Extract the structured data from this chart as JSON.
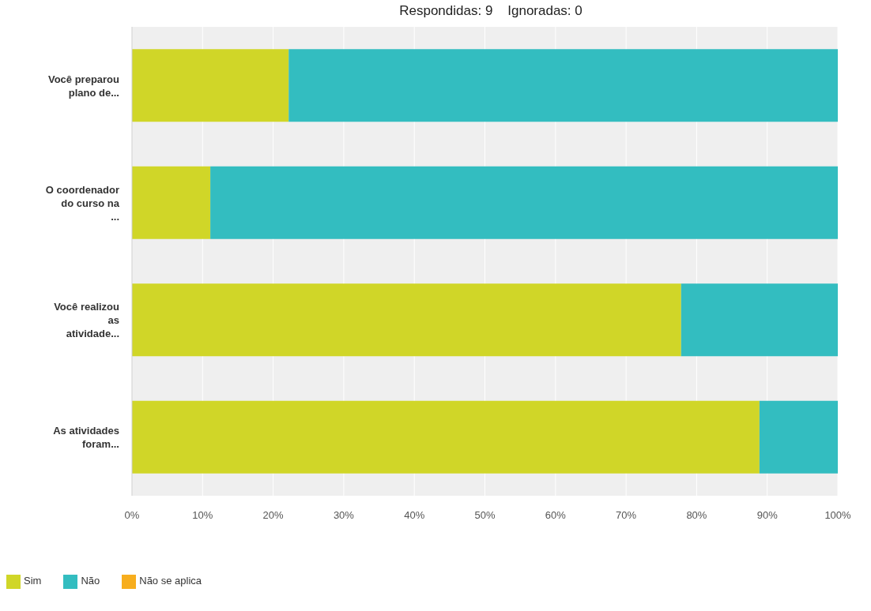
{
  "chart_data": {
    "type": "bar",
    "orientation": "horizontal",
    "stacked": true,
    "title": "Respondidas: 9    Ignoradas: 0",
    "categories": [
      "Você preparou plano de...",
      "O coordenador do curso na ...",
      "Você realizou as atividade...",
      "As atividades foram..."
    ],
    "series": [
      {
        "name": "Sim",
        "color": "#d0d628",
        "values": [
          22.2,
          11.1,
          77.8,
          88.9
        ]
      },
      {
        "name": "Não",
        "color": "#33bdc0",
        "values": [
          77.8,
          88.9,
          22.2,
          11.1
        ]
      },
      {
        "name": "Não se aplica",
        "color": "#f7ae1e",
        "values": [
          0,
          0,
          0,
          0
        ]
      }
    ],
    "xlim": [
      0,
      100
    ],
    "xticks": [
      {
        "value": 0,
        "label": "0%"
      },
      {
        "value": 10,
        "label": "10%"
      },
      {
        "value": 20,
        "label": "20%"
      },
      {
        "value": 30,
        "label": "30%"
      },
      {
        "value": 40,
        "label": "40%"
      },
      {
        "value": 50,
        "label": "50%"
      },
      {
        "value": 60,
        "label": "60%"
      },
      {
        "value": 70,
        "label": "70%"
      },
      {
        "value": 80,
        "label": "80%"
      },
      {
        "value": 90,
        "label": "90%"
      },
      {
        "value": 100,
        "label": "100%"
      }
    ],
    "grid": "x",
    "legend": "bottom left"
  }
}
